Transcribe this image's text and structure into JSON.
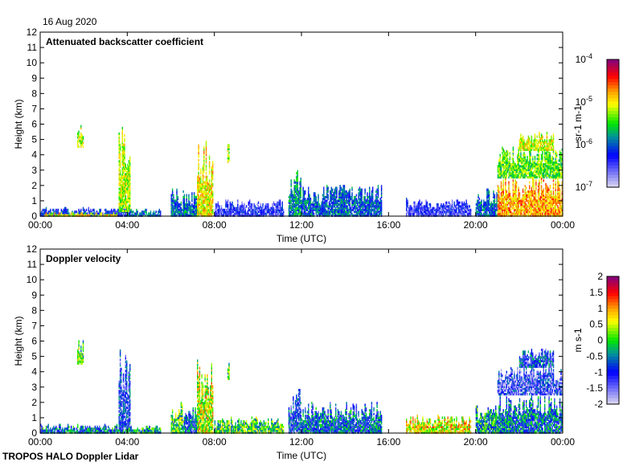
{
  "date": "16 Aug 2020",
  "footer": "TROPOS HALO Doppler Lidar",
  "chart_data": [
    {
      "type": "heatmap",
      "title": "Attenuated backscatter coefficient",
      "xlabel": "Time (UTC)",
      "ylabel": "Height (km)",
      "xlim": [
        0,
        24
      ],
      "ylim": [
        0,
        12
      ],
      "xticks": [
        "00:00",
        "04:00",
        "08:00",
        "12:00",
        "16:00",
        "20:00",
        "00:00"
      ],
      "yticks": [
        "0",
        "1",
        "2",
        "3",
        "4",
        "5",
        "6",
        "7",
        "8",
        "9",
        "10",
        "11",
        "12"
      ],
      "colorbar": {
        "label": "sr-1 m-1",
        "scale": "log10",
        "range": [
          -7,
          -4
        ],
        "ticks": [
          "10-7",
          "10-6",
          "10-5",
          "10-4"
        ]
      },
      "features": [
        {
          "t": [
            0,
            4
          ],
          "h": [
            0,
            0.5
          ],
          "v": -6.2
        },
        {
          "t": [
            0.2,
            3.5
          ],
          "h": [
            0,
            0.15
          ],
          "v": -5.0
        },
        {
          "t": [
            1.7,
            2.0
          ],
          "h": [
            4.5,
            6
          ],
          "v": -5.2
        },
        {
          "t": [
            3.6,
            4.1
          ],
          "h": [
            0.3,
            5.8
          ],
          "v": -5.2
        },
        {
          "t": [
            4.0,
            5.5
          ],
          "h": [
            0,
            0.4
          ],
          "v": -6.0
        },
        {
          "t": [
            6.0,
            6.6
          ],
          "h": [
            0,
            2.0
          ],
          "v": -6.0
        },
        {
          "t": [
            6.6,
            7.2
          ],
          "h": [
            0,
            1.6
          ],
          "v": -5.9
        },
        {
          "t": [
            7.2,
            7.9
          ],
          "h": [
            0,
            5.0
          ],
          "v": -5.0
        },
        {
          "t": [
            8.6,
            8.7
          ],
          "h": [
            3.5,
            4.8
          ],
          "v": -5.2
        },
        {
          "t": [
            8.0,
            11.2
          ],
          "h": [
            0,
            1.0
          ],
          "v": -6.4
        },
        {
          "t": [
            11.4,
            12.0
          ],
          "h": [
            0,
            3.0
          ],
          "v": -5.8
        },
        {
          "t": [
            12.0,
            15.7
          ],
          "h": [
            0,
            2.0
          ],
          "v": -6.0
        },
        {
          "t": [
            16.8,
            19.8
          ],
          "h": [
            0,
            1.1
          ],
          "v": -6.4
        },
        {
          "t": [
            20.0,
            21.0
          ],
          "h": [
            0,
            1.8
          ],
          "v": -6.0
        },
        {
          "t": [
            21.0,
            24.0
          ],
          "h": [
            0,
            2.5
          ],
          "v": -4.8
        },
        {
          "t": [
            21.0,
            24.0
          ],
          "h": [
            2.5,
            4.5
          ],
          "v": -5.4
        },
        {
          "t": [
            22.0,
            23.6
          ],
          "h": [
            4.3,
            5.5
          ],
          "v": -5.1
        }
      ]
    },
    {
      "type": "heatmap",
      "title": "Doppler velocity",
      "xlabel": "Time (UTC)",
      "ylabel": "Height (km)",
      "xlim": [
        0,
        24
      ],
      "ylim": [
        0,
        12
      ],
      "xticks": [
        "00:00",
        "04:00",
        "08:00",
        "12:00",
        "16:00",
        "20:00",
        "00:00"
      ],
      "yticks": [
        "0",
        "1",
        "2",
        "3",
        "4",
        "5",
        "6",
        "7",
        "8",
        "9",
        "10",
        "11",
        "12"
      ],
      "colorbar": {
        "label": "m s-1",
        "scale": "linear",
        "range": [
          -2,
          2
        ],
        "ticks": [
          "-2",
          "-1.5",
          "-1",
          "-0.5",
          "0",
          "0.5",
          "1",
          "1.5",
          "2"
        ]
      },
      "features": [
        {
          "t": [
            0,
            4
          ],
          "h": [
            0,
            0.5
          ],
          "v": -0.6
        },
        {
          "t": [
            1.7,
            2.0
          ],
          "h": [
            4.5,
            6
          ],
          "v": 0.1
        },
        {
          "t": [
            3.6,
            4.1
          ],
          "h": [
            0.3,
            5.8
          ],
          "v": -1.0
        },
        {
          "t": [
            4.0,
            5.5
          ],
          "h": [
            0,
            0.4
          ],
          "v": -0.3
        },
        {
          "t": [
            6.0,
            6.6
          ],
          "h": [
            0,
            2.0
          ],
          "v": 0.0
        },
        {
          "t": [
            6.6,
            7.2
          ],
          "h": [
            0,
            1.6
          ],
          "v": -0.8
        },
        {
          "t": [
            7.2,
            7.9
          ],
          "h": [
            0,
            5.0
          ],
          "v": 0.5
        },
        {
          "t": [
            8.6,
            8.7
          ],
          "h": [
            3.5,
            4.8
          ],
          "v": 0.1
        },
        {
          "t": [
            8.0,
            11.2
          ],
          "h": [
            0,
            1.0
          ],
          "v": 0.0
        },
        {
          "t": [
            11.4,
            12.0
          ],
          "h": [
            0,
            3.0
          ],
          "v": -1.0
        },
        {
          "t": [
            12.0,
            15.7
          ],
          "h": [
            0,
            2.0
          ],
          "v": -0.7
        },
        {
          "t": [
            16.8,
            19.8
          ],
          "h": [
            0,
            1.1
          ],
          "v": 0.6
        },
        {
          "t": [
            20.0,
            21.0
          ],
          "h": [
            0,
            1.8
          ],
          "v": -0.3
        },
        {
          "t": [
            21.0,
            24.0
          ],
          "h": [
            0,
            2.5
          ],
          "v": -0.6
        },
        {
          "t": [
            21.0,
            24.0
          ],
          "h": [
            2.5,
            4.5
          ],
          "v": -1.2
        },
        {
          "t": [
            22.0,
            23.6
          ],
          "h": [
            4.3,
            5.5
          ],
          "v": -0.9
        }
      ]
    }
  ]
}
